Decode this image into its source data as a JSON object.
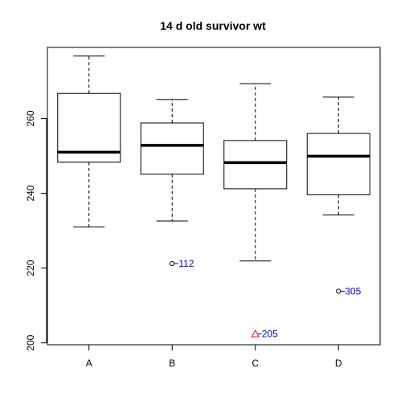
{
  "chart_data": {
    "type": "boxplot",
    "title": "14 d old survivor wt",
    "xlabel": "",
    "ylabel": "",
    "ylim": [
      199.5,
      279
    ],
    "yticks": [
      200,
      220,
      240,
      260
    ],
    "categories": [
      "A",
      "B",
      "C",
      "D"
    ],
    "boxes": [
      {
        "category": "A",
        "whisker_low": 231,
        "q1": 248.3,
        "median": 251,
        "q3": 266.7,
        "whisker_high": 276.7
      },
      {
        "category": "B",
        "whisker_low": 232.6,
        "q1": 245.1,
        "median": 252.8,
        "q3": 258.8,
        "whisker_high": 265.1
      },
      {
        "category": "C",
        "whisker_low": 221.9,
        "q1": 241.2,
        "median": 248.2,
        "q3": 254.1,
        "whisker_high": 269.3
      },
      {
        "category": "D",
        "whisker_low": 234.2,
        "q1": 239.6,
        "median": 249.9,
        "q3": 256,
        "whisker_high": 265.7
      }
    ],
    "outliers": [
      {
        "category": "B",
        "value": 221.2,
        "label": "112",
        "marker": "circle",
        "color": "#0000ff",
        "marker_color": "#000000"
      },
      {
        "category": "C",
        "value": 202.4,
        "label": "205",
        "marker": "triangle",
        "color": "#0000ff",
        "marker_color": "#ff0000"
      },
      {
        "category": "D",
        "value": 213.8,
        "label": "305",
        "marker": "circle",
        "color": "#0000ff",
        "marker_color": "#000000"
      }
    ],
    "grid": false,
    "legend": "none"
  }
}
